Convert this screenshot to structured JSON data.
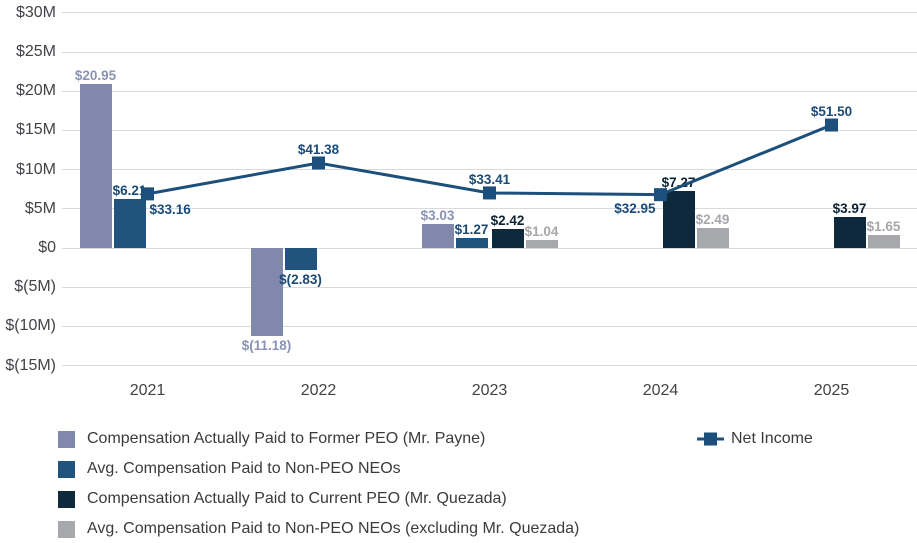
{
  "chart_data": {
    "type": "bar",
    "subtype": "grouped-bars-with-line-overlay",
    "title": "",
    "categories": [
      "2021",
      "2022",
      "2023",
      "2024",
      "2025"
    ],
    "bar_series": [
      {
        "name": "Compensation Actually Paid to Former PEO (Mr. Payne)",
        "color": "#8089AC",
        "label_color": "#8A93B4",
        "values": [
          20.95,
          -11.18,
          3.03,
          null,
          null
        ],
        "labels": [
          "$20.95",
          "$(11.18)",
          "$3.03",
          null,
          null
        ]
      },
      {
        "name": "Avg. Compensation Paid to Non-PEO NEOs",
        "color": "#20547F",
        "label_color": "#1B4A73",
        "values": [
          6.21,
          -2.83,
          1.27,
          null,
          null
        ],
        "labels": [
          "$6.21",
          "$(2.83)",
          "$1.27",
          null,
          null
        ]
      },
      {
        "name": "Compensation Actually Paid to Current PEO (Mr. Quezada)",
        "color": "#0E293C",
        "label_color": "#0D2335",
        "values": [
          null,
          null,
          2.42,
          7.27,
          3.97
        ],
        "labels": [
          null,
          null,
          "$2.42",
          "$7.27",
          "$3.97"
        ]
      },
      {
        "name": "Avg. Compensation Paid to Non-PEO NEOs (excluding Mr. Quezada)",
        "color": "#A6A8AB",
        "label_color": "#A5A7AA",
        "values": [
          null,
          null,
          1.04,
          2.49,
          1.65
        ],
        "labels": [
          null,
          null,
          "$1.04",
          "$2.49",
          "$1.65"
        ]
      }
    ],
    "line_series": {
      "name": "Net Income",
      "color": "#1C4F7B",
      "label_color": "#1A4A78",
      "values": [
        33.16,
        41.38,
        33.41,
        32.95,
        51.5
      ],
      "labels": [
        "$33.16",
        "$41.38",
        "$33.41",
        "$32.95",
        "$51.50"
      ],
      "secondary_axis_shown": false
    },
    "y_axis": {
      "tick_labels": [
        "$30M",
        "$25M",
        "$20M",
        "$15M",
        "$10M",
        "$5M",
        "$0",
        "$(5M)",
        "$(10M)",
        "$(15M)"
      ],
      "tick_values": [
        30,
        25,
        20,
        15,
        10,
        5,
        0,
        -5,
        -10,
        -15
      ],
      "ylim": [
        -15,
        30
      ],
      "unit": "USD millions"
    },
    "x_axis": {
      "tick_labels": [
        "2021",
        "2022",
        "2023",
        "2024",
        "2025"
      ]
    },
    "grid": "horizontal",
    "legend_position": "bottom",
    "colors": {
      "background": "#FFFFFF",
      "gridline": "#DADADC",
      "axis_text": "#414347",
      "legend_text": "#3A3B3E"
    }
  }
}
